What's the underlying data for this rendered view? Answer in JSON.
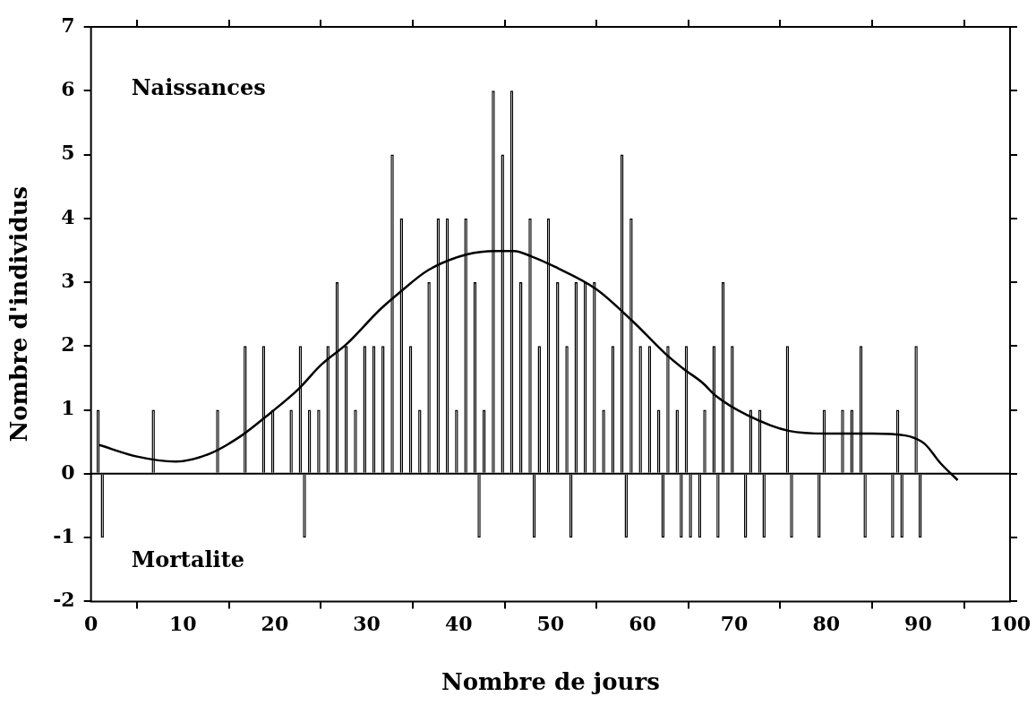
{
  "chart_data": {
    "type": "bar",
    "xlabel": "Nombre de jours",
    "ylabel": "Nombre d'individus",
    "annotations": [
      "Naissances",
      "Mortalite"
    ],
    "series": [
      {
        "color": "#000000",
        "x": [
          1,
          7,
          14,
          17,
          19,
          20,
          22,
          23,
          24,
          25,
          26,
          27,
          28,
          29,
          30,
          31,
          32,
          33,
          34,
          35,
          36,
          37,
          38,
          39,
          40,
          41,
          42,
          43,
          44,
          45,
          46,
          47,
          48,
          49,
          50,
          51,
          52,
          53,
          54,
          55,
          56,
          57,
          58,
          59,
          60,
          61,
          62,
          63,
          64,
          65,
          67,
          68,
          69,
          70,
          72,
          73,
          76,
          80,
          82,
          83,
          84,
          88,
          90
        ],
        "values": [
          1,
          1,
          1,
          2,
          2,
          1,
          1,
          2,
          1,
          1,
          2,
          3,
          2,
          1,
          2,
          2,
          2,
          5,
          4,
          2,
          1,
          3,
          4,
          4,
          1,
          4,
          3,
          1,
          6,
          5,
          6,
          3,
          4,
          2,
          4,
          3,
          2,
          3,
          3,
          3,
          1,
          2,
          5,
          4,
          2,
          2,
          1,
          2,
          1,
          2,
          1,
          2,
          3,
          2,
          1,
          1,
          2,
          1,
          1,
          1,
          2,
          1,
          2
        ]
      },
      {
        "color": "#000000",
        "x": [
          1,
          23,
          42,
          48,
          52,
          58,
          62,
          64,
          65,
          66,
          68,
          71,
          73,
          76,
          79,
          84,
          87,
          88,
          90
        ],
        "values": [
          -1,
          -1,
          -1,
          -1,
          -1,
          -1,
          -1,
          -1,
          -1,
          -1,
          -1,
          -1,
          -1,
          -1,
          -1,
          -1,
          -1,
          -1,
          -1
        ]
      },
      {
        "type": "line",
        "color": "#000000",
        "x": [
          0.9,
          5,
          9.2,
          13,
          16.4,
          19.5,
          22.6,
          25,
          27.8,
          31.5,
          33.5,
          36.7,
          41,
          44,
          46,
          48,
          50.5,
          55,
          59,
          62.5,
          64.5,
          66.5,
          68,
          71.4,
          76,
          80,
          85,
          88.6,
          90.7,
          92.4,
          94.3
        ],
        "values": [
          0.45,
          0.27,
          0.19,
          0.32,
          0.6,
          0.95,
          1.33,
          1.7,
          2.03,
          2.58,
          2.83,
          3.19,
          3.44,
          3.49,
          3.49,
          3.4,
          3.24,
          2.89,
          2.38,
          1.88,
          1.64,
          1.43,
          1.22,
          0.92,
          0.67,
          0.63,
          0.63,
          0.6,
          0.47,
          0.17,
          -0.1
        ]
      }
    ],
    "xlim": [
      0,
      100
    ],
    "xticks": [
      0,
      10,
      20,
      30,
      40,
      50,
      60,
      70,
      80,
      90,
      100
    ],
    "ylim": [
      -2,
      7
    ],
    "yticks": [
      -2,
      -1,
      0,
      1,
      2,
      3,
      4,
      5,
      6,
      7
    ],
    "ref_lines": [
      {
        "axis": "y",
        "value": 0,
        "color": "#000000"
      }
    ],
    "grid": false,
    "legend": false,
    "marker": "none",
    "line_style": "solid"
  }
}
